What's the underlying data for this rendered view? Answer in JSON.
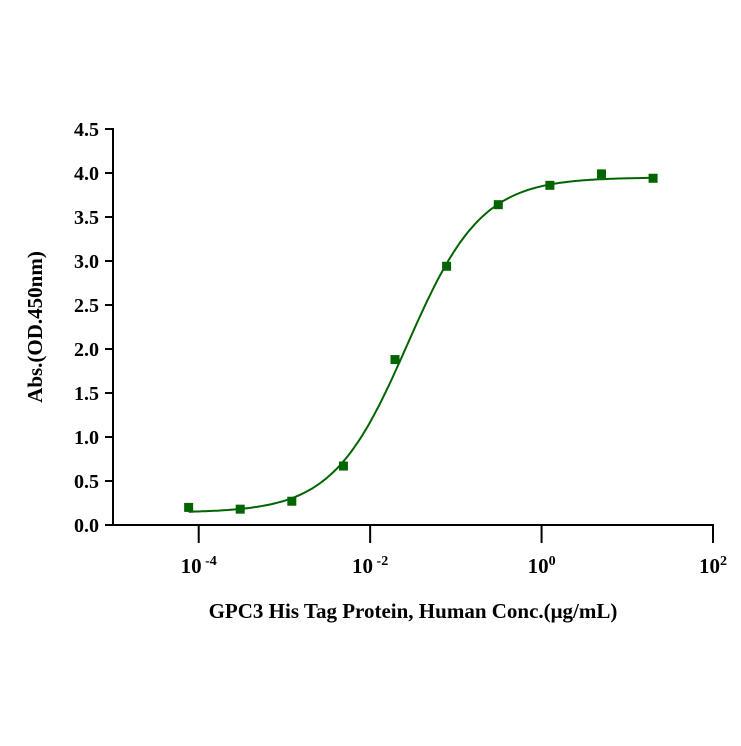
{
  "chart_data": {
    "type": "scatter",
    "title": "",
    "xlabel": "GPC3 His Tag Protein, Human  Conc.(μg/mL)",
    "ylabel": "Abs.(OD.450nm)",
    "xscale": "log",
    "xlim": [
      1e-05,
      100
    ],
    "ylim": [
      0,
      4.5
    ],
    "yticks": [
      "0.0",
      "0.5",
      "1.0",
      "1.5",
      "2.0",
      "2.5",
      "3.0",
      "3.5",
      "4.0",
      "4.5"
    ],
    "xticks": [
      {
        "base": "10",
        "exp": "-4",
        "value": 0.0001
      },
      {
        "base": "10",
        "exp": "-2",
        "value": 0.01
      },
      {
        "base": "10",
        "exp": "0",
        "value": 1
      },
      {
        "base": "10",
        "exp": "2",
        "value": 100
      }
    ],
    "grid": false,
    "series": [
      {
        "name": "GPC3 His Tag Protein, Human",
        "color": "#006400",
        "x": [
          7.63e-05,
          0.000305,
          0.00122,
          0.00488,
          0.0195,
          0.078,
          0.3125,
          1.25,
          5,
          20
        ],
        "y": [
          0.2,
          0.18,
          0.27,
          0.67,
          1.88,
          2.94,
          3.64,
          3.86,
          3.99,
          3.94
        ],
        "fit": {
          "model": "4PL",
          "bottom": 0.14,
          "top": 3.95,
          "ec50": 0.027,
          "hill": 1.0
        }
      }
    ]
  }
}
